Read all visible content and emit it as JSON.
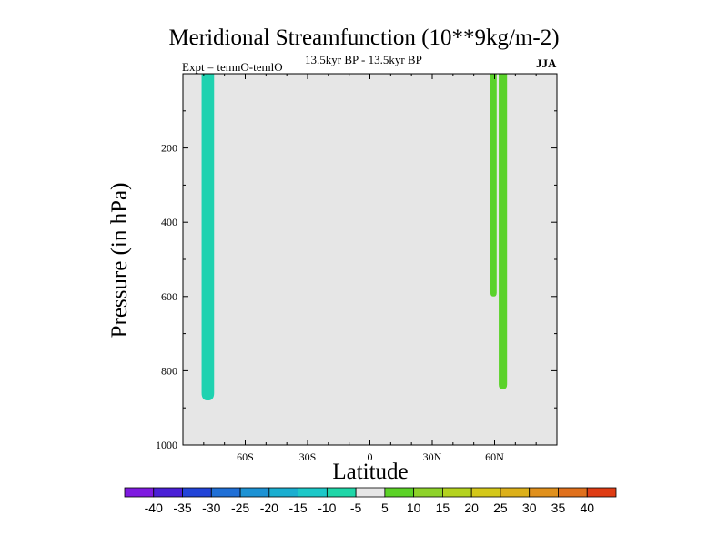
{
  "chart_data": {
    "type": "heatmap",
    "title": "Meridional Streamfunction (10**9kg/m-2)",
    "left_subtitle": "Expt = temnO-temlO",
    "center_subtitle": "13.5kyr BP - 13.5kyr BP",
    "right_subtitle": "JJA",
    "xlabel": "Latitude",
    "ylabel": "Pressure (in hPa)",
    "xlim": [
      -90,
      90
    ],
    "ylim": [
      1000,
      0
    ],
    "x_ticks": [
      -60,
      -30,
      0,
      30,
      60
    ],
    "x_tick_labels": [
      "60S",
      "30S",
      "0",
      "30N",
      "60N"
    ],
    "y_ticks": [
      200,
      400,
      600,
      800,
      1000
    ],
    "y_tick_labels": [
      "200",
      "400",
      "600",
      "800",
      "1000"
    ],
    "background_color": "#e6e6e6",
    "regions": [
      {
        "name": "southern-negative-cell",
        "level": "-10 to -5",
        "color": "#1fd2b0",
        "lat_range": [
          -81,
          -75
        ],
        "pressure_range": [
          0,
          880
        ]
      },
      {
        "name": "northern-positive-cell-1",
        "level": "5 to 10",
        "color": "#5ad22a",
        "lat_range": [
          58,
          61
        ],
        "pressure_range": [
          0,
          600
        ]
      },
      {
        "name": "northern-positive-cell-2",
        "level": "5 to 10",
        "color": "#5ad22a",
        "lat_range": [
          62,
          66
        ],
        "pressure_range": [
          0,
          850
        ]
      }
    ],
    "colorbar": {
      "labels": [
        "-40",
        "-35",
        "-30",
        "-25",
        "-20",
        "-15",
        "-10",
        "-5",
        "5",
        "10",
        "15",
        "20",
        "25",
        "30",
        "35",
        "40"
      ],
      "colors": [
        "#7e1ae0",
        "#4a1fd6",
        "#2244d8",
        "#1f6fd6",
        "#1c92d4",
        "#1aaed0",
        "#1cc8c8",
        "#1fd6a8",
        "#e6e6e6",
        "#5cd227",
        "#8ed22a",
        "#b4d21f",
        "#d4c81a",
        "#dcb01a",
        "#e0901c",
        "#e0701c",
        "#df3c14"
      ]
    }
  }
}
